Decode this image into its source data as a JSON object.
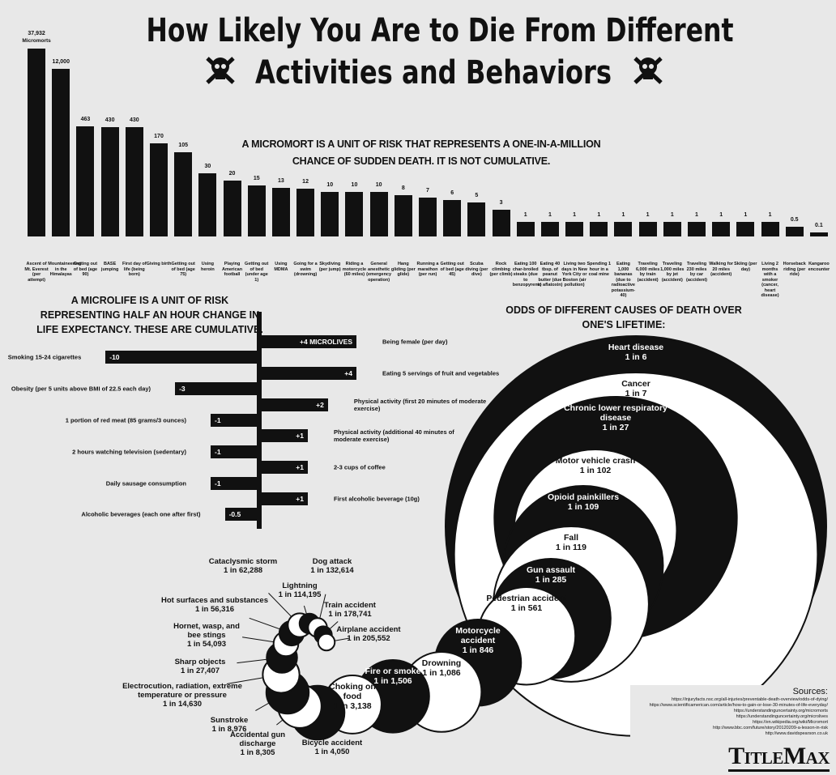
{
  "header": {
    "title_lines": [
      "How Likely You Are to Die From Different",
      "Activities and Behaviors"
    ]
  },
  "chart_data": [
    {
      "type": "bar",
      "title": "A MICROMORT IS A UNIT OF RISK THAT REPRESENTS A ONE-IN-A-MILLION CHANCE OF SUDDEN DEATH. IT IS NOT CUMULATIVE.",
      "unit_label": "Micromorts",
      "categories": [
        "Ascent of Mt. Everest (per attempt)",
        "Mountaineering in the Himalayas",
        "Getting out of bed (age 90)",
        "BASE jumping",
        "First day of life (being born)",
        "Giving birth",
        "Getting out of bed (age 75)",
        "Using heroin",
        "Playing American football",
        "Getting out of bed (under age 1)",
        "Using MDMA",
        "Going for a swim (drowning)",
        "Skydiving (per jump)",
        "Riding a motorcycle (60 miles)",
        "General anesthetic (emergency operation)",
        "Hang gliding (per glide)",
        "Running a marathon (per run)",
        "Getting out of bed (age 45)",
        "Scuba diving (per dive)",
        "Rock climbing (per climb)",
        "Eating 100 char-broiled steaks (due to benzopyrene)",
        "Eating 40 tbsp. of peanut butter (due to aflatoxin)",
        "Living two days in New York City or Boston (air pollution)",
        "Spending 1 hour in a coal mine",
        "Eating 1,000 bananas (due to radioactive potassium-40)",
        "Traveling 6,000 miles by train (accident)",
        "Traveling 1,000 miles by jet (accident)",
        "Traveling 230 miles by car (accident)",
        "Walking for 20 miles (accident)",
        "Skiing (per day)",
        "Living 2 months with a smoker (cancer, heart disease)",
        "Horseback riding (per ride)",
        "Kangaroo encounter"
      ],
      "values": [
        37932,
        12000,
        463,
        430,
        430,
        170,
        105,
        30,
        20,
        15,
        13,
        12,
        10,
        10,
        10,
        8,
        7,
        6,
        5,
        3,
        1,
        1,
        1,
        1,
        1,
        1,
        1,
        1,
        1,
        1,
        1,
        0.5,
        0.1
      ],
      "value_labels": [
        "37,932",
        "12,000",
        "463",
        "430",
        "430",
        "170",
        "105",
        "30",
        "20",
        "15",
        "13",
        "12",
        "10",
        "10",
        "10",
        "8",
        "7",
        "6",
        "5",
        "3",
        "1",
        "1",
        "1",
        "1",
        "1",
        "1",
        "1",
        "1",
        "1",
        "1",
        "1",
        "0.5",
        "0.1"
      ],
      "color": "#111111",
      "log_scale": true
    },
    {
      "type": "barh",
      "title": "A MICROLIFE IS A UNIT OF RISK REPRESENTING HALF AN HOUR CHANGE IN LIFE EXPECTANCY. THESE ARE CUMULATIVE.",
      "categories": [
        "Being female (per day)",
        "Smoking 15-24 cigarettes",
        "Eating 5 servings of fruit and vegetables",
        "Obesity (per 5 units above BMI of 22.5 each day)",
        "Physical activity (first 20 minutes of moderate exercise)",
        "1 portion of red meat (85 grams/3 ounces)",
        "Physical activity (additional 40 minutes of moderate exercise)",
        "2 hours watching television (sedentary)",
        "2-3 cups of coffee",
        "Daily sausage consumption",
        "First alcoholic beverage (10g)",
        "Alcoholic beverages (each one after first)"
      ],
      "values": [
        4,
        -10,
        4,
        -3,
        2,
        -1,
        1,
        -1,
        1,
        -1,
        1,
        -0.5
      ],
      "value_labels": [
        "+4 MICROLIVES",
        "-10",
        "+4",
        "-3",
        "+2",
        "-1",
        "+1",
        "-1",
        "+1",
        "-1",
        "+1",
        "-0.5"
      ],
      "color": "#111111",
      "scale": "sqrt"
    },
    {
      "type": "bubble",
      "title": "ODDS OF DIFFERENT CAUSES OF DEATH OVER ONE'S LIFETIME:",
      "categories": [
        "Heart disease",
        "Cancer",
        "Chronic lower respiratory disease",
        "Motor vehicle crash",
        "Opioid painkillers",
        "Fall",
        "Gun assault",
        "Pedestrian accident",
        "Motorcycle accident",
        "Drowning",
        "Fire or smoke",
        "Choking on food",
        "Bicycle accident",
        "Accidental gun discharge",
        "Sunstroke",
        "Electrocution, radiation, extreme temperature or pressure",
        "Sharp objects",
        "Hornet, wasp, and bee stings",
        "Hot surfaces and substances",
        "Cataclysmic storm",
        "Lightning",
        "Dog attack",
        "Train accident",
        "Airplane accident"
      ],
      "values": [
        6,
        7,
        27,
        102,
        109,
        119,
        285,
        561,
        846,
        1086,
        1506,
        3138,
        4050,
        8305,
        8976,
        14630,
        27407,
        54093,
        56316,
        62288,
        114195,
        132614,
        178741,
        205552
      ],
      "value_labels": [
        "1 in 6",
        "1 in 7",
        "1 in 27",
        "1 in 102",
        "1 in 109",
        "1 in 119",
        "1 in 285",
        "1 in 561",
        "1 in 846",
        "1 in 1,086",
        "1 in 1,506",
        "1 in 3,138",
        "1 in 4,050",
        "1 in 8,305",
        "1 in 8,976",
        "1 in 14,630",
        "1 in 27,407",
        "1 in 54,093",
        "1 in 56,316",
        "1 in 62,288",
        "1 in 114,195",
        "1 in 132,614",
        "1 in 178,741",
        "1 in 205,552"
      ],
      "colors": [
        "#111111",
        "#ffffff"
      ]
    }
  ],
  "sources": {
    "title": "Sources:",
    "links": [
      "https://injuryfacts.nsc.org/all-injuries/preventable-death-overview/odds-of-dying/",
      "https://www.scientificamerican.com/article/how-to-gain-or-lose-30-minutes-of-life-everyday/",
      "https://understandinguncertainty.org/micromorts",
      "https://understandinguncertainty.org/microlives",
      "https://en.wikipedia.org/wiki/Micromort",
      "http://www.bbc.com/future/story/20120209-a-lesson-in-risk",
      "http://www.davidspearson.co.uk"
    ]
  },
  "logo": "TitleMax"
}
